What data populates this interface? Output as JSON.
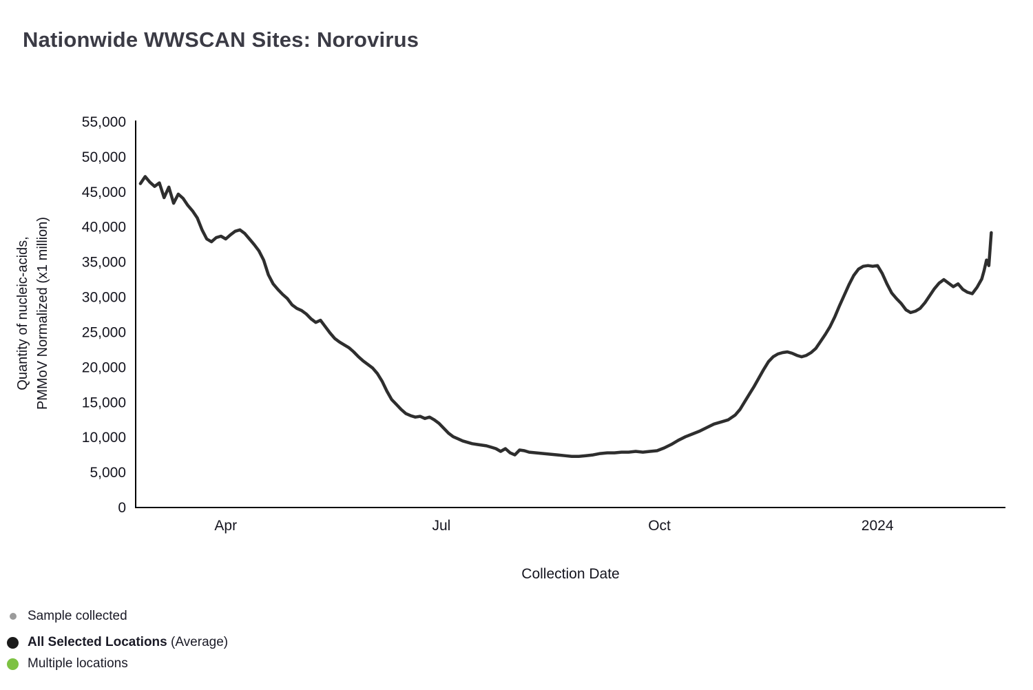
{
  "page": {
    "title": "Nationwide WWSCAN Sites: Norovirus"
  },
  "axes": {
    "ylabel_line1": "Quantity of nucleic-acids,",
    "ylabel_line2": "PMMoV Normalized (x1 million)",
    "xlabel": "Collection Date"
  },
  "legend": {
    "sample": {
      "label": "Sample collected",
      "color": "#9b9b9b"
    },
    "average": {
      "label_bold": "All Selected Locations",
      "label_rest": " (Average)",
      "color": "#1b1b1b"
    },
    "multiple": {
      "label": "Multiple locations",
      "color": "#7dc242"
    }
  },
  "chart_data": {
    "type": "line",
    "title": "Nationwide WWSCAN Sites: Norovirus",
    "xlabel": "Collection Date",
    "ylabel": "Quantity of nucleic-acids, PMMoV Normalized (x1 million)",
    "ylim": [
      0,
      55000
    ],
    "y_ticks": [
      0,
      5000,
      10000,
      15000,
      20000,
      25000,
      30000,
      35000,
      40000,
      45000,
      50000,
      55000
    ],
    "x_domain": [
      "2023-02-22",
      "2024-02-24"
    ],
    "x_ticks": [
      {
        "date": "2023-04-01",
        "label": "Apr"
      },
      {
        "date": "2023-07-01",
        "label": "Jul"
      },
      {
        "date": "2023-10-01",
        "label": "Oct"
      },
      {
        "date": "2024-01-01",
        "label": "2024"
      }
    ],
    "grid": false,
    "legend_position": "bottom-left",
    "line_color": "#2e2e2e",
    "series": [
      {
        "name": "All Selected Locations (Average)",
        "points": [
          [
            "2023-02-24",
            46200
          ],
          [
            "2023-02-26",
            47200
          ],
          [
            "2023-02-28",
            46400
          ],
          [
            "2023-03-02",
            45800
          ],
          [
            "2023-03-04",
            46300
          ],
          [
            "2023-03-06",
            44200
          ],
          [
            "2023-03-08",
            45700
          ],
          [
            "2023-03-10",
            43400
          ],
          [
            "2023-03-12",
            44700
          ],
          [
            "2023-03-14",
            44100
          ],
          [
            "2023-03-16",
            43100
          ],
          [
            "2023-03-18",
            42300
          ],
          [
            "2023-03-20",
            41300
          ],
          [
            "2023-03-22",
            39600
          ],
          [
            "2023-03-24",
            38300
          ],
          [
            "2023-03-26",
            37900
          ],
          [
            "2023-03-28",
            38500
          ],
          [
            "2023-03-30",
            38700
          ],
          [
            "2023-04-01",
            38300
          ],
          [
            "2023-04-03",
            38900
          ],
          [
            "2023-04-05",
            39400
          ],
          [
            "2023-04-07",
            39600
          ],
          [
            "2023-04-09",
            39100
          ],
          [
            "2023-04-11",
            38300
          ],
          [
            "2023-04-13",
            37500
          ],
          [
            "2023-04-15",
            36600
          ],
          [
            "2023-04-17",
            35300
          ],
          [
            "2023-04-19",
            33200
          ],
          [
            "2023-04-21",
            31900
          ],
          [
            "2023-04-23",
            31100
          ],
          [
            "2023-04-25",
            30400
          ],
          [
            "2023-04-27",
            29800
          ],
          [
            "2023-04-29",
            28900
          ],
          [
            "2023-05-01",
            28400
          ],
          [
            "2023-05-03",
            28100
          ],
          [
            "2023-05-05",
            27600
          ],
          [
            "2023-05-07",
            26900
          ],
          [
            "2023-05-09",
            26400
          ],
          [
            "2023-05-11",
            26700
          ],
          [
            "2023-05-13",
            25800
          ],
          [
            "2023-05-15",
            24900
          ],
          [
            "2023-05-17",
            24100
          ],
          [
            "2023-05-19",
            23600
          ],
          [
            "2023-05-21",
            23200
          ],
          [
            "2023-05-23",
            22800
          ],
          [
            "2023-05-25",
            22200
          ],
          [
            "2023-05-27",
            21500
          ],
          [
            "2023-05-29",
            20900
          ],
          [
            "2023-05-31",
            20400
          ],
          [
            "2023-06-02",
            19900
          ],
          [
            "2023-06-04",
            19100
          ],
          [
            "2023-06-06",
            18000
          ],
          [
            "2023-06-08",
            16600
          ],
          [
            "2023-06-10",
            15400
          ],
          [
            "2023-06-12",
            14700
          ],
          [
            "2023-06-14",
            14000
          ],
          [
            "2023-06-16",
            13400
          ],
          [
            "2023-06-18",
            13100
          ],
          [
            "2023-06-20",
            12900
          ],
          [
            "2023-06-22",
            13000
          ],
          [
            "2023-06-24",
            12700
          ],
          [
            "2023-06-26",
            12900
          ],
          [
            "2023-06-28",
            12500
          ],
          [
            "2023-06-30",
            12000
          ],
          [
            "2023-07-02",
            11300
          ],
          [
            "2023-07-04",
            10600
          ],
          [
            "2023-07-06",
            10100
          ],
          [
            "2023-07-08",
            9800
          ],
          [
            "2023-07-10",
            9500
          ],
          [
            "2023-07-12",
            9300
          ],
          [
            "2023-07-14",
            9100
          ],
          [
            "2023-07-16",
            9000
          ],
          [
            "2023-07-18",
            8900
          ],
          [
            "2023-07-20",
            8800
          ],
          [
            "2023-07-22",
            8600
          ],
          [
            "2023-07-24",
            8400
          ],
          [
            "2023-07-26",
            8000
          ],
          [
            "2023-07-28",
            8400
          ],
          [
            "2023-07-30",
            7800
          ],
          [
            "2023-08-01",
            7500
          ],
          [
            "2023-08-03",
            8200
          ],
          [
            "2023-08-05",
            8100
          ],
          [
            "2023-08-07",
            7900
          ],
          [
            "2023-08-10",
            7800
          ],
          [
            "2023-08-13",
            7700
          ],
          [
            "2023-08-16",
            7600
          ],
          [
            "2023-08-19",
            7500
          ],
          [
            "2023-08-22",
            7400
          ],
          [
            "2023-08-25",
            7300
          ],
          [
            "2023-08-28",
            7300
          ],
          [
            "2023-08-31",
            7400
          ],
          [
            "2023-09-03",
            7500
          ],
          [
            "2023-09-06",
            7700
          ],
          [
            "2023-09-09",
            7800
          ],
          [
            "2023-09-12",
            7800
          ],
          [
            "2023-09-15",
            7900
          ],
          [
            "2023-09-18",
            7900
          ],
          [
            "2023-09-21",
            8000
          ],
          [
            "2023-09-24",
            7900
          ],
          [
            "2023-09-27",
            8000
          ],
          [
            "2023-09-30",
            8100
          ],
          [
            "2023-10-03",
            8500
          ],
          [
            "2023-10-06",
            9000
          ],
          [
            "2023-10-09",
            9600
          ],
          [
            "2023-10-12",
            10100
          ],
          [
            "2023-10-15",
            10500
          ],
          [
            "2023-10-18",
            10900
          ],
          [
            "2023-10-21",
            11400
          ],
          [
            "2023-10-24",
            11900
          ],
          [
            "2023-10-27",
            12200
          ],
          [
            "2023-10-30",
            12500
          ],
          [
            "2023-11-02",
            13200
          ],
          [
            "2023-11-04",
            14000
          ],
          [
            "2023-11-06",
            15100
          ],
          [
            "2023-11-08",
            16200
          ],
          [
            "2023-11-10",
            17300
          ],
          [
            "2023-11-12",
            18500
          ],
          [
            "2023-11-14",
            19700
          ],
          [
            "2023-11-16",
            20800
          ],
          [
            "2023-11-18",
            21500
          ],
          [
            "2023-11-20",
            21900
          ],
          [
            "2023-11-22",
            22100
          ],
          [
            "2023-11-24",
            22200
          ],
          [
            "2023-11-26",
            22000
          ],
          [
            "2023-11-28",
            21700
          ],
          [
            "2023-11-30",
            21500
          ],
          [
            "2023-12-02",
            21700
          ],
          [
            "2023-12-04",
            22100
          ],
          [
            "2023-12-06",
            22700
          ],
          [
            "2023-12-08",
            23700
          ],
          [
            "2023-12-10",
            24700
          ],
          [
            "2023-12-12",
            25800
          ],
          [
            "2023-12-14",
            27200
          ],
          [
            "2023-12-16",
            28800
          ],
          [
            "2023-12-18",
            30300
          ],
          [
            "2023-12-20",
            31800
          ],
          [
            "2023-12-22",
            33100
          ],
          [
            "2023-12-24",
            34000
          ],
          [
            "2023-12-26",
            34400
          ],
          [
            "2023-12-28",
            34500
          ],
          [
            "2023-12-30",
            34400
          ],
          [
            "2024-01-01",
            34500
          ],
          [
            "2024-01-03",
            33400
          ],
          [
            "2024-01-05",
            31900
          ],
          [
            "2024-01-07",
            30600
          ],
          [
            "2024-01-09",
            29800
          ],
          [
            "2024-01-11",
            29100
          ],
          [
            "2024-01-13",
            28200
          ],
          [
            "2024-01-15",
            27800
          ],
          [
            "2024-01-17",
            28000
          ],
          [
            "2024-01-19",
            28400
          ],
          [
            "2024-01-21",
            29200
          ],
          [
            "2024-01-23",
            30200
          ],
          [
            "2024-01-25",
            31200
          ],
          [
            "2024-01-27",
            32000
          ],
          [
            "2024-01-29",
            32500
          ],
          [
            "2024-01-31",
            32000
          ],
          [
            "2024-02-02",
            31500
          ],
          [
            "2024-02-04",
            31900
          ],
          [
            "2024-02-06",
            31100
          ],
          [
            "2024-02-08",
            30700
          ],
          [
            "2024-02-10",
            30500
          ],
          [
            "2024-02-12",
            31400
          ],
          [
            "2024-02-14",
            32600
          ],
          [
            "2024-02-15",
            33800
          ],
          [
            "2024-02-16",
            35300
          ],
          [
            "2024-02-17",
            34500
          ],
          [
            "2024-02-18",
            39200
          ]
        ]
      }
    ]
  }
}
